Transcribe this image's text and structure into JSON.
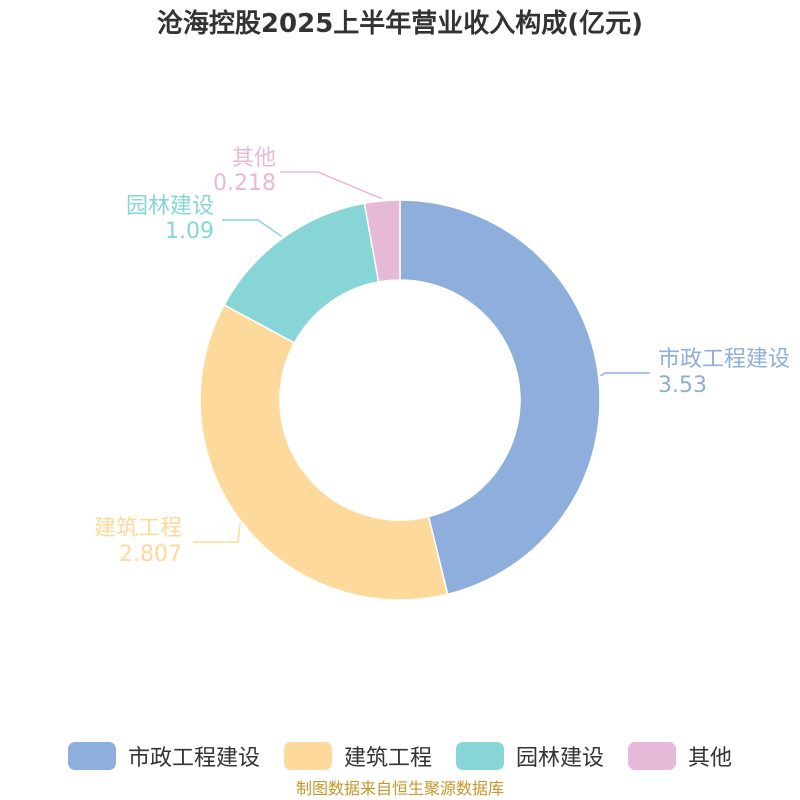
{
  "chart_data": {
    "type": "pie",
    "style": "donut",
    "title": "沧海控股2025上半年营业收入构成(亿元)",
    "series": [
      {
        "name": "市政工程建设",
        "value": 3.53,
        "value_label": "3.53",
        "color": "#8eaedb"
      },
      {
        "name": "建筑工程",
        "value": 2.807,
        "value_label": "2.807",
        "color": "#fed99c"
      },
      {
        "name": "园林建设",
        "value": 1.09,
        "value_label": "1.09",
        "color": "#87d5d6"
      },
      {
        "name": "其他",
        "value": 0.218,
        "value_label": "0.218",
        "color": "#e7b9d8"
      }
    ],
    "legend_position": "bottom"
  },
  "source_note": "制图数据来自恒生聚源数据库"
}
